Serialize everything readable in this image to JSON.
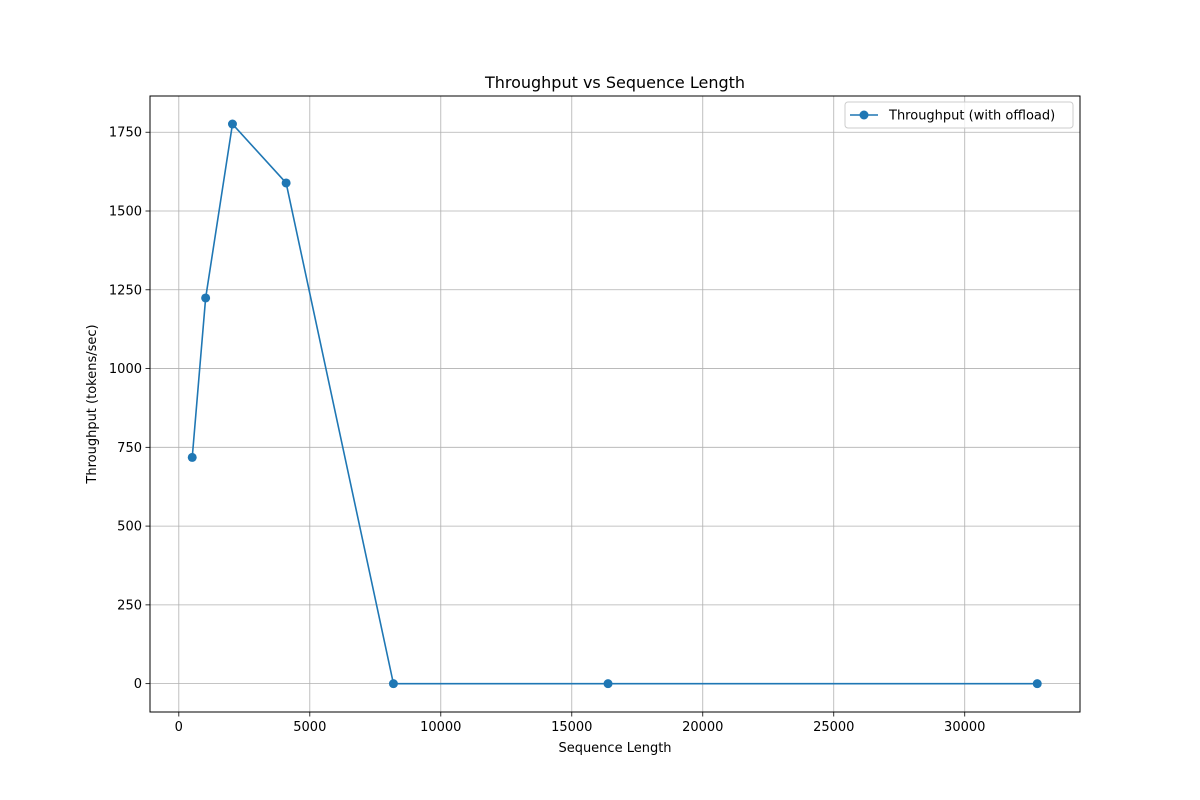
{
  "chart_data": {
    "type": "line",
    "title": "Throughput vs Sequence Length",
    "xlabel": "Sequence Length",
    "ylabel": "Throughput (tokens/sec)",
    "xlim": [
      -1100,
      34400
    ],
    "ylim": [
      -90,
      1865
    ],
    "xticks": [
      0,
      5000,
      10000,
      15000,
      20000,
      25000,
      30000
    ],
    "yticks": [
      0,
      250,
      500,
      750,
      1000,
      1250,
      1500,
      1750
    ],
    "grid": true,
    "legend_position": "top-right",
    "series": [
      {
        "name": "Throughput (with offload)",
        "color": "#1f77b4",
        "marker": "circle",
        "x": [
          512,
          1024,
          2048,
          4096,
          8192,
          16384,
          32768
        ],
        "y": [
          718,
          1224,
          1776,
          1589,
          0,
          0,
          0
        ]
      }
    ]
  }
}
